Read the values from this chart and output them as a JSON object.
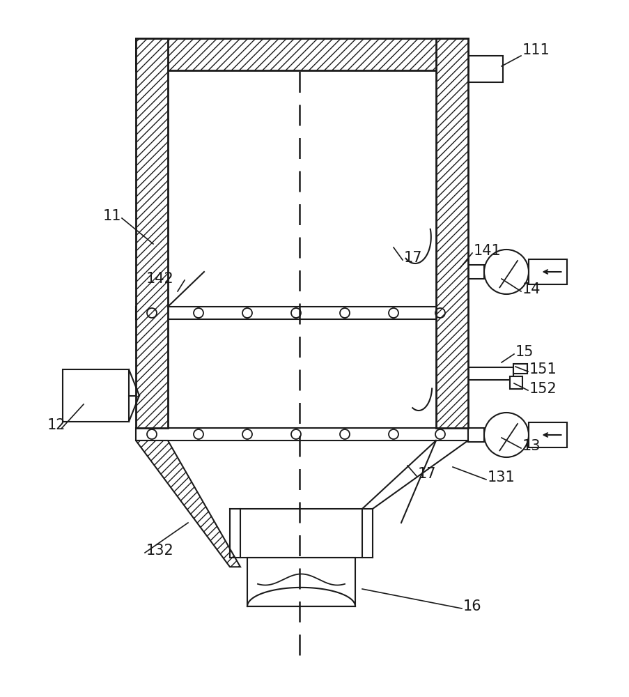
{
  "bg_color": "#ffffff",
  "line_color": "#1a1a1a",
  "fig_width": 9.04,
  "fig_height": 10.0,
  "dpi": 100
}
